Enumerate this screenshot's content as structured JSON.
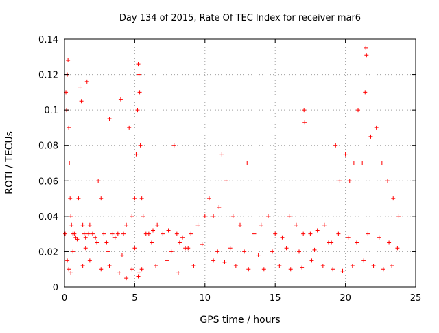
{
  "chart_data": {
    "type": "scatter",
    "title": "Day 134 of 2015, Rate Of TEC Index for receiver mar6",
    "xlabel": "GPS time / hours",
    "ylabel": "ROTI / TECUs",
    "xlim": [
      0,
      25
    ],
    "ylim": [
      0,
      0.14
    ],
    "x_ticks": [
      0,
      5,
      10,
      15,
      20,
      25
    ],
    "y_ticks": [
      0,
      0.02,
      0.04,
      0.06,
      0.08,
      0.1,
      0.12,
      0.14
    ],
    "x_tick_labels": [
      "0",
      "5",
      "10",
      "15",
      "20",
      "25"
    ],
    "y_tick_labels": [
      "0",
      "0.02",
      "0.04",
      "0.06",
      "0.08",
      "0.1",
      "0.12",
      "0.14"
    ],
    "grid": true,
    "marker": "+",
    "color": "#ff0000",
    "series": [
      {
        "x": [
          0.05,
          0.1,
          0.15,
          0.2,
          0.25,
          0.3,
          0.35,
          0.4,
          0.45,
          0.5,
          0.6,
          0.7,
          0.8,
          0.9,
          1.0,
          1.1,
          1.2,
          1.3,
          1.4,
          1.5,
          1.6,
          1.7,
          1.8,
          2.0,
          2.2,
          2.4,
          2.6,
          2.8,
          3.0,
          3.2,
          3.4,
          3.6,
          3.8,
          4.0,
          4.2,
          4.4,
          4.6,
          4.8,
          5.0,
          5.1,
          5.2,
          5.25,
          5.3,
          5.35,
          5.4,
          5.5,
          5.6,
          5.8,
          6.0,
          6.3,
          6.6,
          7.0,
          7.4,
          7.8,
          8.0,
          8.2,
          8.4,
          8.6,
          9.0,
          9.5,
          10.0,
          10.3,
          10.6,
          11.0,
          11.2,
          11.5,
          12.0,
          12.5,
          13.0,
          13.5,
          14.0,
          14.5,
          15.0,
          15.5,
          16.0,
          16.5,
          17.0,
          17.05,
          17.1,
          17.5,
          18.0,
          18.5,
          19.0,
          19.3,
          19.6,
          20.0,
          20.3,
          20.6,
          20.9,
          21.2,
          21.4,
          21.45,
          21.5,
          21.8,
          22.2,
          22.6,
          23.0,
          23.4,
          23.8,
          0.2,
          0.3,
          0.45,
          1.3,
          1.8,
          2.6,
          3.2,
          3.9,
          4.4,
          4.8,
          5.25,
          5.3,
          5.5,
          6.5,
          7.3,
          8.1,
          9.2,
          10.6,
          11.4,
          12.2,
          13.1,
          14.2,
          15.3,
          16.1,
          16.9,
          17.6,
          18.4,
          19.1,
          19.8,
          20.5,
          21.3,
          22.0,
          22.7,
          23.3,
          0.6,
          1.5,
          2.3,
          3.1,
          4.1,
          5.0,
          6.2,
          7.6,
          8.8,
          9.8,
          10.9,
          11.8,
          12.8,
          13.8,
          14.8,
          15.8,
          16.7,
          17.8,
          18.8,
          19.5,
          20.2,
          20.8,
          21.6,
          22.4,
          23.1,
          23.7
        ],
        "y": [
          0.03,
          0.11,
          0.1,
          0.12,
          0.128,
          0.09,
          0.07,
          0.05,
          0.04,
          0.035,
          0.03,
          0.03,
          0.028,
          0.027,
          0.05,
          0.113,
          0.105,
          0.035,
          0.03,
          0.028,
          0.116,
          0.03,
          0.035,
          0.03,
          0.028,
          0.06,
          0.05,
          0.03,
          0.025,
          0.095,
          0.03,
          0.028,
          0.03,
          0.106,
          0.03,
          0.035,
          0.09,
          0.04,
          0.05,
          0.075,
          0.1,
          0.126,
          0.12,
          0.11,
          0.08,
          0.05,
          0.04,
          0.03,
          0.03,
          0.032,
          0.035,
          0.03,
          0.032,
          0.08,
          0.03,
          0.025,
          0.028,
          0.022,
          0.03,
          0.035,
          0.04,
          0.05,
          0.04,
          0.045,
          0.075,
          0.06,
          0.04,
          0.035,
          0.07,
          0.03,
          0.035,
          0.04,
          0.03,
          0.028,
          0.04,
          0.035,
          0.03,
          0.1,
          0.093,
          0.03,
          0.032,
          0.035,
          0.025,
          0.08,
          0.06,
          0.075,
          0.06,
          0.07,
          0.1,
          0.07,
          0.11,
          0.135,
          0.131,
          0.085,
          0.09,
          0.07,
          0.06,
          0.05,
          0.04,
          0.015,
          0.01,
          0.008,
          0.012,
          0.015,
          0.01,
          0.012,
          0.008,
          0.005,
          0.01,
          0.006,
          0.008,
          0.01,
          0.012,
          0.015,
          0.008,
          0.012,
          0.015,
          0.014,
          0.012,
          0.01,
          0.01,
          0.012,
          0.01,
          0.011,
          0.015,
          0.012,
          0.01,
          0.009,
          0.012,
          0.015,
          0.012,
          0.01,
          0.012,
          0.02,
          0.022,
          0.025,
          0.02,
          0.018,
          0.022,
          0.025,
          0.02,
          0.022,
          0.024,
          0.02,
          0.022,
          0.02,
          0.018,
          0.02,
          0.022,
          0.02,
          0.021,
          0.025,
          0.03,
          0.028,
          0.025,
          0.03,
          0.028,
          0.025,
          0.022
        ]
      }
    ]
  }
}
